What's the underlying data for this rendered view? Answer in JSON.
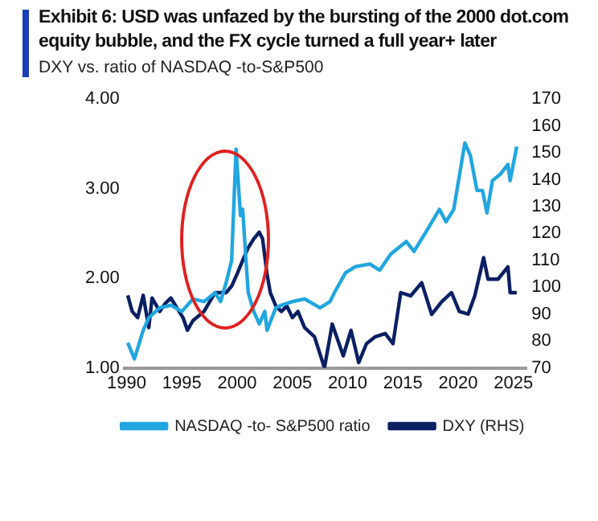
{
  "chart_data": {
    "type": "line",
    "title": "Exhibit 6: USD was unfazed by the bursting of the 2000 dot.com equity bubble, and the FX cycle turned a full year+ later",
    "subtitle": "DXY vs. ratio of NASDAQ -to-S&P500",
    "xlim": [
      1989.8,
      2026.2
    ],
    "xticks": [
      1990,
      1995,
      2000,
      2005,
      2010,
      2015,
      2020,
      2025
    ],
    "ylim": [
      1,
      4
    ],
    "yticks": [
      {
        "value": 1,
        "label": "1.00"
      },
      {
        "value": 2,
        "label": "2.00"
      },
      {
        "value": 3,
        "label": "3.00"
      },
      {
        "value": 4,
        "label": "4.00"
      }
    ],
    "y2lim": [
      70,
      170
    ],
    "y2ticks": [
      70,
      80,
      90,
      100,
      110,
      120,
      130,
      140,
      150,
      160,
      170
    ],
    "grid": false,
    "legend": "bottom",
    "marker": "none",
    "line_style": "solid",
    "series": [
      {
        "name": "NASDAQ -to- S&P500 ratio",
        "color": "#21a6e0",
        "x": [
          1990.1,
          1990.7,
          1991.5,
          1992,
          1993,
          1994,
          1995,
          1996,
          1997,
          1998,
          1998.5,
          1999,
          1999.5,
          1999.9,
          2000.3,
          2000.5,
          2000.8,
          2001,
          2001.5,
          2002,
          2002.5,
          2002.7,
          2003.5,
          2004,
          2005,
          2006.1,
          2007.5,
          2008.4,
          2008.8,
          2009.8,
          2010.7,
          2012,
          2012.9,
          2013.9,
          2015.3,
          2016,
          2017.1,
          2018.3,
          2018.9,
          2019.6,
          2020.6,
          2021.1,
          2021.7,
          2022.2,
          2022.6,
          2023.1,
          2023.8,
          2024.5,
          2024.7,
          2025.3
        ],
        "values": [
          1.28,
          1.1,
          1.42,
          1.56,
          1.67,
          1.7,
          1.63,
          1.77,
          1.74,
          1.84,
          1.74,
          1.95,
          2.2,
          3.44,
          2.7,
          2.77,
          2.2,
          1.84,
          1.63,
          1.49,
          1.63,
          1.42,
          1.67,
          1.7,
          1.74,
          1.77,
          1.67,
          1.74,
          1.84,
          2.06,
          2.13,
          2.16,
          2.09,
          2.27,
          2.41,
          2.3,
          2.52,
          2.77,
          2.63,
          2.77,
          3.51,
          3.37,
          2.98,
          2.98,
          2.73,
          3.09,
          3.16,
          3.27,
          3.09,
          3.47
        ]
      },
      {
        "name": "DXY (RHS)",
        "color": "#0b1f63",
        "axis": "y2",
        "x": [
          1990.1,
          1990.5,
          1991,
          1991.5,
          1992,
          1992.3,
          1993,
          1993.5,
          1994,
          1995.1,
          1995.5,
          1996,
          1997,
          1998,
          1999,
          1999.5,
          2000,
          2000.5,
          2001,
          2001.5,
          2002,
          2002.3,
          2002.7,
          2003,
          2003.5,
          2004,
          2004.5,
          2005,
          2005.5,
          2006.1,
          2007,
          2007.9,
          2008.6,
          2009,
          2009.6,
          2010.3,
          2011,
          2011.7,
          2012.5,
          2013.4,
          2014.1,
          2014.8,
          2015.7,
          2016.7,
          2017.6,
          2018.5,
          2019.4,
          2020.1,
          2020.9,
          2021.5,
          2022.3,
          2022.7,
          2023.6,
          2024.5,
          2024.7,
          2025.3
        ],
        "values": [
          97,
          91,
          88.7,
          97,
          85,
          96,
          91,
          94,
          96,
          88.7,
          84,
          87.6,
          91,
          98,
          98,
          100.4,
          105,
          110,
          114.7,
          118,
          120.5,
          118,
          105,
          98,
          93,
          91,
          93,
          88.7,
          91,
          85,
          81.6,
          70,
          86.3,
          81.6,
          74.5,
          84,
          72,
          79,
          81.6,
          82.8,
          79,
          98,
          96.8,
          101.7,
          89.9,
          94.6,
          98,
          91,
          90,
          96.8,
          111,
          103,
          103,
          107.6,
          98,
          98
        ]
      }
    ]
  }
}
